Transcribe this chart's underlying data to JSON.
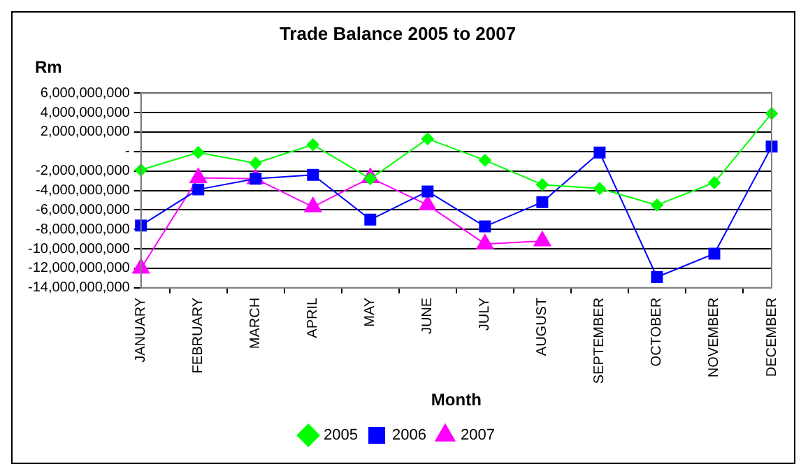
{
  "chart_data": {
    "type": "line",
    "title": "Trade Balance 2005 to 2007",
    "ylabel": "Rm",
    "xlabel": "Month",
    "categories": [
      "JANUARY",
      "FEBRUARY",
      "MARCH",
      "APRIL",
      "MAY",
      "JUNE",
      "JULY",
      "AUGUST",
      "SEPTEMBER",
      "OCTOBER",
      "NOVEMBER",
      "DECEMBER"
    ],
    "series": [
      {
        "name": "2005",
        "color": "#00ff00",
        "marker": "diamond",
        "values": [
          -1900000000,
          -100000000,
          -1200000000,
          700000000,
          -2800000000,
          1300000000,
          -900000000,
          -3400000000,
          -3800000000,
          -5500000000,
          -3200000000,
          3900000000
        ]
      },
      {
        "name": "2006",
        "color": "#0000ff",
        "marker": "square",
        "values": [
          -7600000000,
          -3900000000,
          -2800000000,
          -2400000000,
          -7000000000,
          -4100000000,
          -7700000000,
          -5200000000,
          -100000000,
          -12900000000,
          -10500000000,
          500000000
        ]
      },
      {
        "name": "2007",
        "color": "#ff00ff",
        "marker": "triangle",
        "values": [
          -12000000000,
          -2700000000,
          -2800000000,
          -5700000000,
          -2700000000,
          -5500000000,
          -9500000000,
          -9200000000,
          null,
          null,
          null,
          null
        ]
      }
    ],
    "ylim": [
      -14000000000,
      6000000000
    ],
    "yticks": [
      {
        "value": -14000000000,
        "label": "-14,000,000,000"
      },
      {
        "value": -12000000000,
        "label": "-12,000,000,000"
      },
      {
        "value": -10000000000,
        "label": "-10,000,000,000"
      },
      {
        "value": -8000000000,
        "label": "-8,000,000,000"
      },
      {
        "value": -6000000000,
        "label": "-6,000,000,000"
      },
      {
        "value": -4000000000,
        "label": "-4,000,000,000"
      },
      {
        "value": -2000000000,
        "label": "-2,000,000,000"
      },
      {
        "value": 0,
        "label": "-"
      },
      {
        "value": 2000000000,
        "label": "2,000,000,000"
      },
      {
        "value": 4000000000,
        "label": "4,000,000,000"
      },
      {
        "value": 6000000000,
        "label": "6,000,000,000"
      }
    ],
    "grid": "y",
    "legend": "bottom",
    "line_style": "solid"
  }
}
